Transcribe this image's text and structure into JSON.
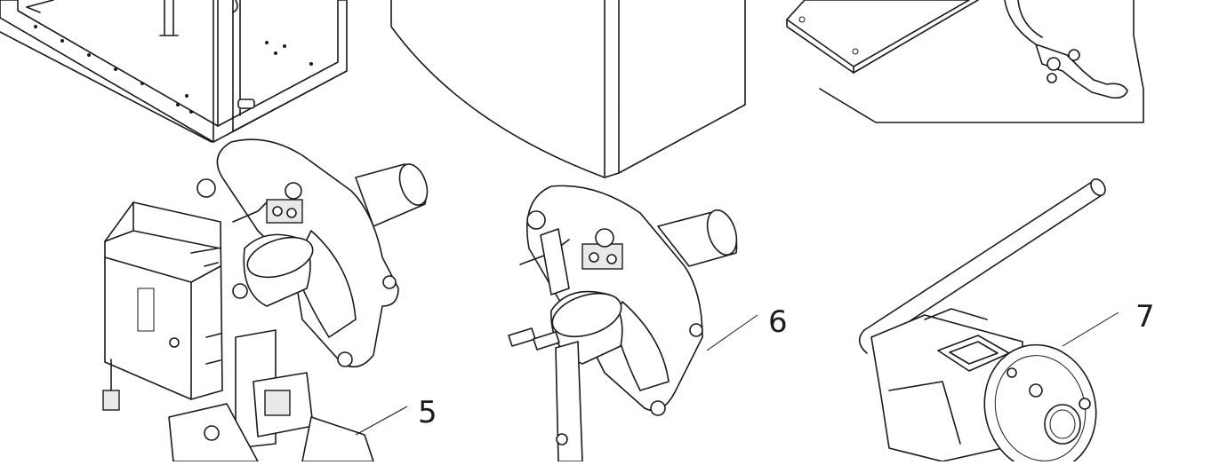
{
  "callouts": [
    {
      "id": "5",
      "label": "5"
    },
    {
      "id": "6",
      "label": "6"
    },
    {
      "id": "7",
      "label": "7"
    }
  ],
  "colors": {
    "line": "#1a1a1a",
    "background": "#ffffff",
    "shade": "#e9e9e9"
  }
}
